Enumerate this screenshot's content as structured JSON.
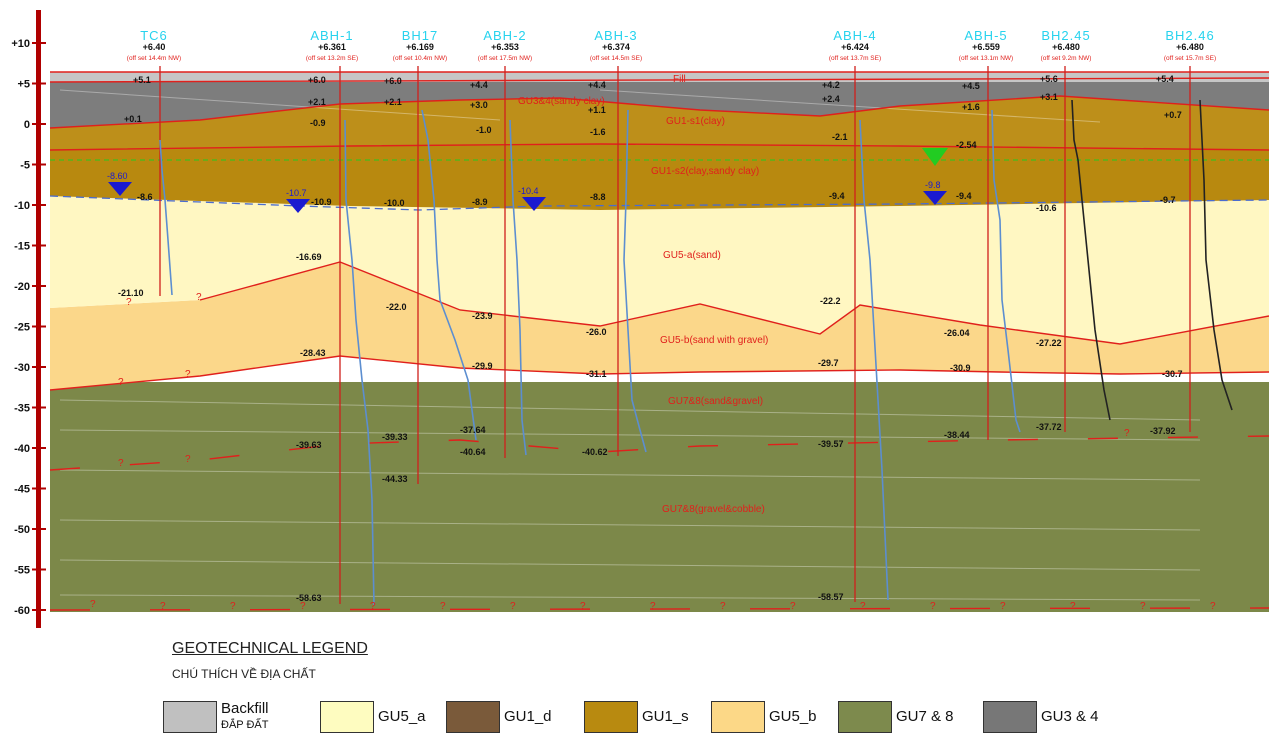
{
  "elevation_ticks": [
    {
      "label": "+10",
      "v": 10
    },
    {
      "label": "+5",
      "v": 5
    },
    {
      "label": "0",
      "v": 0
    },
    {
      "label": "-5",
      "v": -5
    },
    {
      "label": "-10",
      "v": -10
    },
    {
      "label": "-15",
      "v": -15
    },
    {
      "label": "-20",
      "v": -20
    },
    {
      "label": "-25",
      "v": -25
    },
    {
      "label": "-30",
      "v": -30
    },
    {
      "label": "-35",
      "v": -35
    },
    {
      "label": "-40",
      "v": -40
    },
    {
      "label": "-45",
      "v": -45
    },
    {
      "label": "-50",
      "v": -50
    },
    {
      "label": "-55",
      "v": -55
    },
    {
      "label": "-60",
      "v": -60
    }
  ],
  "boreholes": [
    {
      "id": "bh-tc6",
      "name": "TC6",
      "elev": "+6.40",
      "offset": "(off set 14.4m NW)"
    },
    {
      "id": "bh-abh1",
      "name": "ABH-1",
      "elev": "+6.361",
      "offset": "(off set 13.2m SE)"
    },
    {
      "id": "bh-bh17",
      "name": "BH17",
      "elev": "+6.169",
      "offset": "(off set 10.4m NW)"
    },
    {
      "id": "bh-abh2",
      "name": "ABH-2",
      "elev": "+6.353",
      "offset": "(off set 17.5m NW)"
    },
    {
      "id": "bh-abh3",
      "name": "ABH-3",
      "elev": "+6.374",
      "offset": "(off set 14.5m SE)"
    },
    {
      "id": "bh-abh4",
      "name": "ABH-4",
      "elev": "+6.424",
      "offset": "(off set 13.7m SE)"
    },
    {
      "id": "bh-abh5",
      "name": "ABH-5",
      "elev": "+6.559",
      "offset": "(off set 13.1m NW)"
    },
    {
      "id": "bh-245",
      "name": "BH2.45",
      "elev": "+6.480",
      "offset": "(off set 9.2m NW)"
    },
    {
      "id": "bh-246",
      "name": "BH2.46",
      "elev": "+6.480",
      "offset": "(off set 15.7m SE)"
    }
  ],
  "layer_labels": [
    {
      "id": "fill",
      "text": "Fill"
    },
    {
      "id": "gu34",
      "text": "GU3&4(sandy clay)"
    },
    {
      "id": "gu1s1",
      "text": "GU1-s1(clay)"
    },
    {
      "id": "gu1s2",
      "text": "GU1-s2(clay,sandy clay)"
    },
    {
      "id": "gu5a",
      "text": "GU5-a(sand)"
    },
    {
      "id": "gu5b",
      "text": "GU5-b(sand with gravel)"
    },
    {
      "id": "gu78a",
      "text": "GU7&8(sand&gravel)"
    },
    {
      "id": "gu78b",
      "text": "GU7&8(gravel&cobble)"
    }
  ],
  "water_levels": [
    {
      "id": "wl-tc6",
      "text": "-8.60"
    },
    {
      "id": "wl-abh1",
      "text": "-10.7"
    },
    {
      "id": "wl-abh2",
      "text": "-10.4"
    },
    {
      "id": "wl-abh5",
      "text": "-9.8"
    }
  ],
  "depth_labels": [
    {
      "t": "+5.1"
    },
    {
      "t": "+0.1"
    },
    {
      "t": "-8.6"
    },
    {
      "t": "-21.10"
    },
    {
      "t": "+6.0"
    },
    {
      "t": "+2.1"
    },
    {
      "t": "-0.9"
    },
    {
      "t": "-10.9"
    },
    {
      "t": "-16.69"
    },
    {
      "t": "-28.43"
    },
    {
      "t": "-39.63"
    },
    {
      "t": "-58.63"
    },
    {
      "t": "+6.0"
    },
    {
      "t": "+2.1"
    },
    {
      "t": "-10.0"
    },
    {
      "t": "-22.0"
    },
    {
      "t": "-39.33"
    },
    {
      "t": "-44.33"
    },
    {
      "t": "+4.4"
    },
    {
      "t": "+3.0"
    },
    {
      "t": "-1.0"
    },
    {
      "t": "-8.9"
    },
    {
      "t": "-23.9"
    },
    {
      "t": "-29.9"
    },
    {
      "t": "-37.64"
    },
    {
      "t": "-40.64"
    },
    {
      "t": "+4.4"
    },
    {
      "t": "+1.1"
    },
    {
      "t": "-1.6"
    },
    {
      "t": "-8.8"
    },
    {
      "t": "-26.0"
    },
    {
      "t": "-31.1"
    },
    {
      "t": "-40.62"
    },
    {
      "t": "+4.2"
    },
    {
      "t": "+2.4"
    },
    {
      "t": "-2.1"
    },
    {
      "t": "-9.4"
    },
    {
      "t": "-22.2"
    },
    {
      "t": "-29.7"
    },
    {
      "t": "-39.57"
    },
    {
      "t": "-58.57"
    },
    {
      "t": "+4.5"
    },
    {
      "t": "+1.6"
    },
    {
      "t": "-2.54"
    },
    {
      "t": "-9.4"
    },
    {
      "t": "-26.04"
    },
    {
      "t": "-30.9"
    },
    {
      "t": "-38.44"
    },
    {
      "t": "+5.6"
    },
    {
      "t": "+3.1"
    },
    {
      "t": "-10.6"
    },
    {
      "t": "-27.22"
    },
    {
      "t": "-37.72"
    },
    {
      "t": "+5.4"
    },
    {
      "t": "+0.7"
    },
    {
      "t": "-9.7"
    },
    {
      "t": "-30.7"
    },
    {
      "t": "-37.92"
    }
  ],
  "legend": {
    "title": "GEOTECHNICAL LEGEND",
    "subtitle": "CHÚ THÍCH VỀ ĐỊA CHẤT",
    "items": [
      {
        "label": "Backfill",
        "sub": "ĐẮP ĐẤT",
        "color": "#c0c0c0"
      },
      {
        "label": "GU5_a",
        "sub": "",
        "color": "#fefcc0"
      },
      {
        "label": "GU1_d",
        "sub": "",
        "color": "#7a5a3a"
      },
      {
        "label": "GU1_s",
        "sub": "",
        "color": "#b88a10"
      },
      {
        "label": "GU5_b",
        "sub": "",
        "color": "#fcd887"
      },
      {
        "label": "GU7 & 8",
        "sub": "",
        "color": "#7d8a4d"
      },
      {
        "label": "GU3 & 4",
        "sub": "",
        "color": "#777777"
      }
    ]
  },
  "colors": {
    "backfill": "#c6c6c6",
    "gu34": "#7d7d7d",
    "gu1": "#b8890f",
    "gu5a": "#fff7c2",
    "gu5b": "#fbd78a",
    "gu78": "#7c8849",
    "line": "#e0201c",
    "bhname": "#27d3ee",
    "water": "#1a1ad0",
    "green": "#22cc22"
  }
}
